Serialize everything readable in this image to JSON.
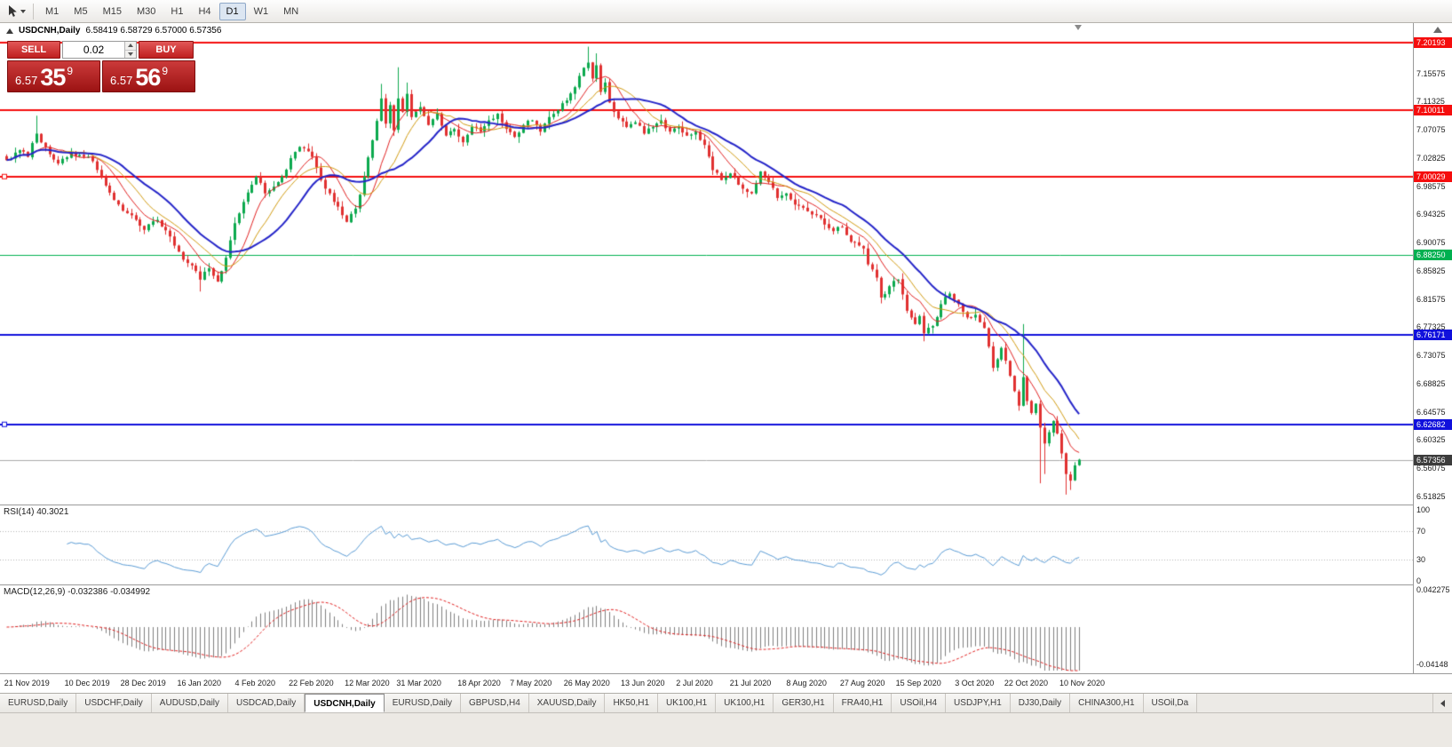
{
  "toolbar": {
    "timeframes": [
      "M1",
      "M5",
      "M15",
      "M30",
      "H1",
      "H4",
      "D1",
      "W1",
      "MN"
    ],
    "active_timeframe": "D1"
  },
  "chart": {
    "symbol_label": "USDCNH,Daily",
    "ohlc_text": "6.58419 6.58729 6.57000 6.57356"
  },
  "trade_panel": {
    "sell_label": "SELL",
    "buy_label": "BUY",
    "volume": "0.02",
    "sell_price": {
      "prefix": "6.57",
      "pips": "35",
      "pipette": "9"
    },
    "buy_price": {
      "prefix": "6.57",
      "pips": "56",
      "pipette": "9"
    }
  },
  "price_axis": {
    "ticks": [
      "7.15575",
      "7.11325",
      "7.07075",
      "7.02825",
      "6.98575",
      "6.94325",
      "6.90075",
      "6.85825",
      "6.81575",
      "6.77325",
      "6.73075",
      "6.68825",
      "6.64575",
      "6.60325",
      "6.56075",
      "6.51825"
    ],
    "tags": [
      {
        "label": "7.20193",
        "color": "#f50d0d",
        "kind": "resistance"
      },
      {
        "label": "7.10011",
        "color": "#f50d0d",
        "kind": "resistance"
      },
      {
        "label": "7.00029",
        "color": "#f50d0d",
        "kind": "resistance"
      },
      {
        "label": "6.88250",
        "color": "#00b050",
        "kind": "support"
      },
      {
        "label": "6.76171",
        "color": "#1010dc",
        "kind": "support"
      },
      {
        "label": "6.62682",
        "color": "#1010dc",
        "kind": "support"
      },
      {
        "label": "6.57356",
        "color": "#3c3c3c",
        "kind": "current-price"
      }
    ]
  },
  "indicators": {
    "rsi": {
      "label": "RSI(14) 40.3021",
      "period": 14,
      "value": 40.3021,
      "ticks": [
        "100",
        "70",
        "30",
        "0"
      ],
      "levels": [
        70,
        30
      ],
      "color": "#5a9bd4"
    },
    "macd": {
      "label": "MACD(12,26,9) -0.032386 -0.034992",
      "fast": 12,
      "slow": 26,
      "signal": 9,
      "values": [
        -0.032386,
        -0.034992
      ],
      "ticks": [
        "0.042275",
        "-0.04148"
      ],
      "hist_color": "#7f7f7f",
      "signal_color": "#e02020"
    }
  },
  "time_axis": {
    "labels": [
      {
        "idx": 5,
        "text": "21 Nov 2019"
      },
      {
        "idx": 19,
        "text": "10 Dec 2019"
      },
      {
        "idx": 32,
        "text": "28 Dec 2019"
      },
      {
        "idx": 45,
        "text": "16 Jan 2020"
      },
      {
        "idx": 58,
        "text": "4 Feb 2020"
      },
      {
        "idx": 71,
        "text": "22 Feb 2020"
      },
      {
        "idx": 84,
        "text": "12 Mar 2020"
      },
      {
        "idx": 96,
        "text": "31 Mar 2020"
      },
      {
        "idx": 110,
        "text": "18 Apr 2020"
      },
      {
        "idx": 122,
        "text": "7 May 2020"
      },
      {
        "idx": 135,
        "text": "26 May 2020"
      },
      {
        "idx": 148,
        "text": "13 Jun 2020"
      },
      {
        "idx": 160,
        "text": "2 Jul 2020"
      },
      {
        "idx": 173,
        "text": "21 Jul 2020"
      },
      {
        "idx": 186,
        "text": "8 Aug 2020"
      },
      {
        "idx": 199,
        "text": "27 Aug 2020"
      },
      {
        "idx": 212,
        "text": "15 Sep 2020"
      },
      {
        "idx": 225,
        "text": "3 Oct 2020"
      },
      {
        "idx": 237,
        "text": "22 Oct 2020"
      },
      {
        "idx": 250,
        "text": "10 Nov 2020"
      }
    ]
  },
  "bottom_tabs": {
    "active_index": 4,
    "tabs": [
      "EURUSD,Daily",
      "USDCHF,Daily",
      "AUDUSD,Daily",
      "USDCAD,Daily",
      "USDCNH,Daily",
      "EURUSD,Daily",
      "GBPUSD,H4",
      "XAUUSD,Daily",
      "HK50,H1",
      "UK100,H1",
      "UK100,H1",
      "GER30,H1",
      "FRA40,H1",
      "USOil,H4",
      "USDJPY,H1",
      "DJ30,Daily",
      "CHINA300,H1",
      "USOil,Da"
    ]
  },
  "chart_data": {
    "type": "candlestick",
    "symbol": "USDCNH",
    "period": "Daily",
    "current": {
      "open": 6.58419,
      "high": 6.58729,
      "low": 6.57,
      "close": 6.57356,
      "bid_display": "6.57359",
      "ask_display": "6.57569"
    },
    "count": 250,
    "candle_up_color": "#0ca94e",
    "candle_down_color": "#e03030",
    "current_price": 6.57356,
    "current_price_line_color": "#ababab",
    "hlines": [
      {
        "price": 7.20193,
        "color": "#f50d0d",
        "width": 2
      },
      {
        "price": 7.10011,
        "color": "#f50d0d",
        "width": 2
      },
      {
        "price": 7.00029,
        "color": "#f50d0d",
        "width": 2,
        "marker": true
      },
      {
        "price": 6.8825,
        "color": "#00b050",
        "width": 1
      },
      {
        "price": 6.76171,
        "color": "#1010dc",
        "width": 2
      },
      {
        "price": 6.62682,
        "color": "#1010dc",
        "width": 2,
        "marker": true
      }
    ],
    "moving_averages": [
      {
        "period": 8,
        "color": "#e02020",
        "width": 1
      },
      {
        "period": 13,
        "color": "#d09a10",
        "width": 1
      },
      {
        "period": 21,
        "color": "#2424c8",
        "width": 2
      }
    ],
    "close_anchors": [
      [
        0,
        7.025
      ],
      [
        3,
        7.04
      ],
      [
        5,
        7.03
      ],
      [
        7,
        7.065
      ],
      [
        9,
        7.045
      ],
      [
        12,
        7.02
      ],
      [
        15,
        7.035
      ],
      [
        19,
        7.03
      ],
      [
        22,
        7.0
      ],
      [
        25,
        6.965
      ],
      [
        28,
        6.945
      ],
      [
        32,
        6.92
      ],
      [
        35,
        6.935
      ],
      [
        38,
        6.91
      ],
      [
        41,
        6.875
      ],
      [
        44,
        6.858
      ],
      [
        45,
        6.845
      ],
      [
        47,
        6.862
      ],
      [
        49,
        6.842
      ],
      [
        51,
        6.878
      ],
      [
        53,
        6.93
      ],
      [
        55,
        6.962
      ],
      [
        57,
        6.988
      ],
      [
        58,
        7.0
      ],
      [
        60,
        6.975
      ],
      [
        62,
        6.985
      ],
      [
        64,
        7.0
      ],
      [
        66,
        7.028
      ],
      [
        68,
        7.045
      ],
      [
        71,
        7.03
      ],
      [
        73,
        6.995
      ],
      [
        75,
        6.975
      ],
      [
        77,
        6.955
      ],
      [
        79,
        6.932
      ],
      [
        81,
        6.952
      ],
      [
        83,
        7.0
      ],
      [
        85,
        7.055
      ],
      [
        87,
        7.118
      ],
      [
        88,
        7.08
      ],
      [
        89,
        7.108
      ],
      [
        90,
        7.07
      ],
      [
        91,
        7.118
      ],
      [
        92,
        7.098
      ],
      [
        93,
        7.125
      ],
      [
        94,
        7.09
      ],
      [
        96,
        7.105
      ],
      [
        98,
        7.078
      ],
      [
        100,
        7.095
      ],
      [
        102,
        7.062
      ],
      [
        104,
        7.072
      ],
      [
        106,
        7.052
      ],
      [
        108,
        7.075
      ],
      [
        110,
        7.068
      ],
      [
        112,
        7.085
      ],
      [
        114,
        7.095
      ],
      [
        116,
        7.072
      ],
      [
        118,
        7.06
      ],
      [
        120,
        7.078
      ],
      [
        122,
        7.085
      ],
      [
        124,
        7.068
      ],
      [
        126,
        7.09
      ],
      [
        128,
        7.1
      ],
      [
        130,
        7.115
      ],
      [
        132,
        7.135
      ],
      [
        133,
        7.152
      ],
      [
        135,
        7.172
      ],
      [
        136,
        7.148
      ],
      [
        137,
        7.168
      ],
      [
        138,
        7.128
      ],
      [
        139,
        7.142
      ],
      [
        140,
        7.112
      ],
      [
        142,
        7.088
      ],
      [
        144,
        7.075
      ],
      [
        146,
        7.082
      ],
      [
        148,
        7.065
      ],
      [
        150,
        7.075
      ],
      [
        152,
        7.085
      ],
      [
        154,
        7.068
      ],
      [
        156,
        7.075
      ],
      [
        158,
        7.062
      ],
      [
        160,
        7.068
      ],
      [
        162,
        7.048
      ],
      [
        164,
        7.01
      ],
      [
        166,
        6.995
      ],
      [
        168,
        7.005
      ],
      [
        170,
        6.988
      ],
      [
        173,
        6.975
      ],
      [
        175,
        7.008
      ],
      [
        177,
        6.992
      ],
      [
        179,
        6.968
      ],
      [
        181,
        6.975
      ],
      [
        183,
        6.958
      ],
      [
        186,
        6.948
      ],
      [
        188,
        6.942
      ],
      [
        190,
        6.928
      ],
      [
        192,
        6.918
      ],
      [
        194,
        6.924
      ],
      [
        196,
        6.902
      ],
      [
        199,
        6.892
      ],
      [
        200,
        6.868
      ],
      [
        202,
        6.848
      ],
      [
        203,
        6.818
      ],
      [
        205,
        6.835
      ],
      [
        207,
        6.845
      ],
      [
        209,
        6.798
      ],
      [
        211,
        6.778
      ],
      [
        212,
        6.79
      ],
      [
        213,
        6.764
      ],
      [
        215,
        6.775
      ],
      [
        217,
        6.808
      ],
      [
        219,
        6.824
      ],
      [
        221,
        6.808
      ],
      [
        223,
        6.788
      ],
      [
        225,
        6.792
      ],
      [
        227,
        6.772
      ],
      [
        229,
        6.712
      ],
      [
        231,
        6.742
      ],
      [
        233,
        6.7
      ],
      [
        235,
        6.655
      ],
      [
        236,
        6.698
      ],
      [
        237,
        6.662
      ],
      [
        238,
        6.644
      ],
      [
        239,
        6.658
      ],
      [
        240,
        6.622
      ],
      [
        241,
        6.598
      ],
      [
        242,
        6.615
      ],
      [
        243,
        6.632
      ],
      [
        244,
        6.613
      ],
      [
        245,
        6.583
      ],
      [
        246,
        6.552
      ],
      [
        247,
        6.542
      ],
      [
        248,
        6.565
      ],
      [
        249,
        6.5736
      ]
    ],
    "wick_overrides": [
      {
        "i": 7,
        "high": 7.092
      },
      {
        "i": 45,
        "low": 6.827
      },
      {
        "i": 87,
        "high": 7.14
      },
      {
        "i": 91,
        "high": 7.165
      },
      {
        "i": 93,
        "high": 7.142
      },
      {
        "i": 135,
        "high": 7.196
      },
      {
        "i": 137,
        "high": 7.186
      },
      {
        "i": 213,
        "low": 6.752
      },
      {
        "i": 236,
        "high": 6.778
      },
      {
        "i": 240,
        "low": 6.538
      },
      {
        "i": 241,
        "low": 6.552
      },
      {
        "i": 246,
        "low": 6.521
      },
      {
        "i": 247,
        "low": 6.528
      }
    ]
  }
}
